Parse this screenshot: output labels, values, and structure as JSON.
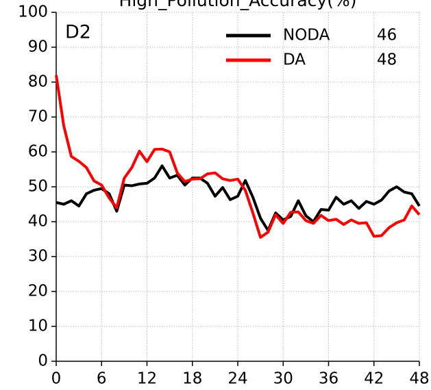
{
  "chart_data": {
    "type": "line",
    "title": "High_Pollution_Accuracy(%)",
    "annotation": "D2",
    "x": [
      0,
      1,
      2,
      3,
      4,
      5,
      6,
      7,
      8,
      9,
      10,
      11,
      12,
      13,
      14,
      15,
      16,
      17,
      18,
      19,
      20,
      21,
      22,
      23,
      24,
      25,
      26,
      27,
      28,
      29,
      30,
      31,
      32,
      33,
      34,
      35,
      36,
      37,
      38,
      39,
      40,
      41,
      42,
      43,
      44,
      45,
      46,
      47,
      48
    ],
    "series": [
      {
        "name": "NODA",
        "score": 46,
        "color": "#000000",
        "values": [
          45.5,
          45,
          46,
          44.5,
          48,
          49,
          49.5,
          48,
          43,
          50.5,
          50.3,
          50.8,
          51,
          52.5,
          56,
          52.5,
          53.3,
          50.5,
          52.5,
          52.5,
          51,
          47.3,
          49.8,
          46.3,
          47.3,
          51.8,
          47,
          41,
          37.5,
          42.5,
          40.5,
          41.5,
          46,
          41.7,
          40,
          43.5,
          43.3,
          47,
          45,
          46,
          43.8,
          45.8,
          45,
          46.2,
          48.8,
          50,
          48.5,
          48,
          44.5
        ]
      },
      {
        "name": "DA",
        "score": 48,
        "color": "#ff0000",
        "values": [
          82,
          67.5,
          58.7,
          57.3,
          55.5,
          51.7,
          50.5,
          46.8,
          44,
          52.5,
          55.5,
          60.2,
          57.2,
          60.7,
          60.8,
          60,
          54,
          51.5,
          52.2,
          52.3,
          53.7,
          54,
          52.3,
          51.8,
          52.2,
          49,
          42.5,
          35.5,
          37,
          42,
          39.5,
          42.7,
          42.8,
          40.3,
          39.5,
          41.8,
          40.3,
          40.7,
          39.2,
          40.5,
          39.5,
          39.7,
          35.8,
          36,
          38.3,
          39.7,
          40.5,
          44.5,
          42
        ]
      }
    ],
    "xlim": [
      0,
      48
    ],
    "xticks": [
      0,
      6,
      12,
      18,
      24,
      30,
      36,
      42,
      48
    ],
    "ylim": [
      0,
      100
    ],
    "yticks": [
      0,
      10,
      20,
      30,
      40,
      50,
      60,
      70,
      80,
      90,
      100
    ],
    "grid": true,
    "legend": "upper right"
  }
}
